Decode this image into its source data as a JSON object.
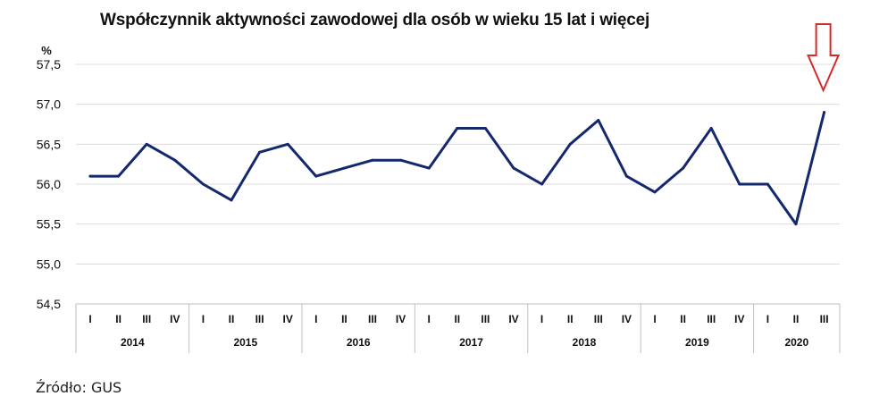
{
  "chart_data": {
    "type": "line",
    "title": "Współczynnik aktywności zawodowej dla osób w wieku 15 lat i więcej",
    "ylabel": "%",
    "ylim": [
      54.5,
      57.5
    ],
    "yticks": [
      "57,5",
      "57,0",
      "56,5",
      "56,0",
      "55,5",
      "55,0",
      "54,5"
    ],
    "ytick_values": [
      57.5,
      57.0,
      56.5,
      56.0,
      55.5,
      55.0,
      54.5
    ],
    "grid": true,
    "line_color": "#14286e",
    "arrow_color": "#d42a2a",
    "years": [
      "2014",
      "2015",
      "2016",
      "2017",
      "2018",
      "2019",
      "2020"
    ],
    "quarters": [
      "I",
      "II",
      "III",
      "IV",
      "I",
      "II",
      "III",
      "IV",
      "I",
      "II",
      "III",
      "IV",
      "I",
      "II",
      "III",
      "IV",
      "I",
      "II",
      "III",
      "IV",
      "I",
      "II",
      "III",
      "IV",
      "I",
      "II",
      "III"
    ],
    "values": [
      56.1,
      56.1,
      56.5,
      56.3,
      56.0,
      55.8,
      56.4,
      56.5,
      56.1,
      56.2,
      56.3,
      56.3,
      56.2,
      56.7,
      56.7,
      56.2,
      56.0,
      56.5,
      56.8,
      56.1,
      55.9,
      56.2,
      56.7,
      56.0,
      56.0,
      55.5,
      56.9
    ]
  },
  "source": "Źródło: GUS"
}
